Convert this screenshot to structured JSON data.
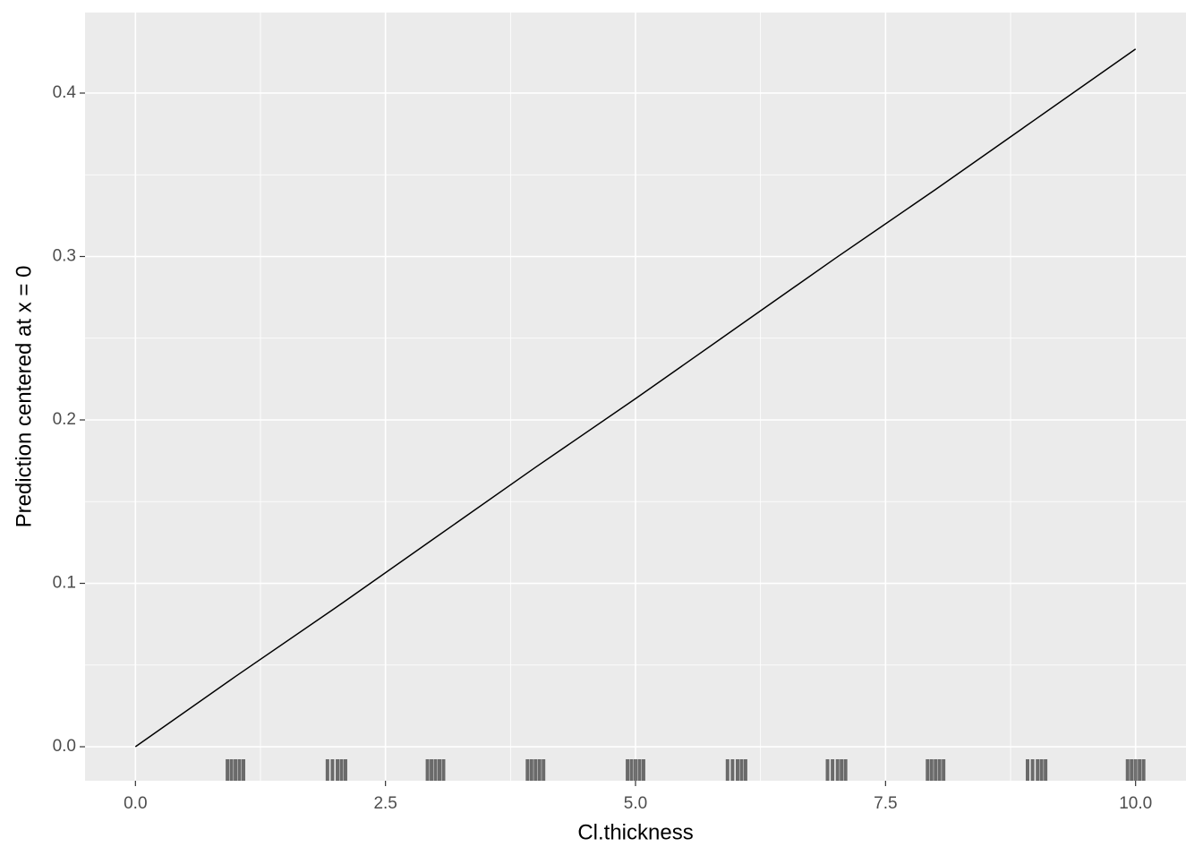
{
  "chart_data": {
    "type": "line",
    "x_label": "Cl.thickness",
    "y_label": "Prediction centered at x = 0",
    "x": [
      0,
      1,
      2,
      3,
      4,
      5,
      6,
      7,
      8,
      9,
      10
    ],
    "series": [
      {
        "color": "#000000",
        "values": [
          0,
          0.043,
          0.085,
          0.128,
          0.171,
          0.213,
          0.256,
          0.299,
          0.341,
          0.384,
          0.427
        ]
      }
    ],
    "rug": [
      0.92,
      0.96,
      1.0,
      1.04,
      1.08,
      1.92,
      1.97,
      2.02,
      2.06,
      2.1,
      2.92,
      2.96,
      3.0,
      3.04,
      3.08,
      3.92,
      3.96,
      4.0,
      4.04,
      4.08,
      4.92,
      4.96,
      5.0,
      5.04,
      5.08,
      5.92,
      5.97,
      6.02,
      6.06,
      6.1,
      6.92,
      6.97,
      7.02,
      7.06,
      7.1,
      7.92,
      7.96,
      8.0,
      8.04,
      8.08,
      8.92,
      8.97,
      9.02,
      9.06,
      9.1,
      9.92,
      9.96,
      10.0,
      10.04,
      10.08
    ],
    "rug_color": "#000000",
    "xlim": [
      -0.504,
      10.504
    ],
    "ylim": [
      -0.0208,
      0.4493
    ],
    "xticks": [
      {
        "value": 0,
        "label": "0.0"
      },
      {
        "value": 2.5,
        "label": "2.5"
      },
      {
        "value": 5,
        "label": "5.0"
      },
      {
        "value": 7.5,
        "label": "7.5"
      },
      {
        "value": 10,
        "label": "10.0"
      }
    ],
    "yticks": [
      {
        "value": 0,
        "label": "0.0"
      },
      0.1,
      0.2,
      0.3,
      0.4
    ],
    "grid": true
  }
}
